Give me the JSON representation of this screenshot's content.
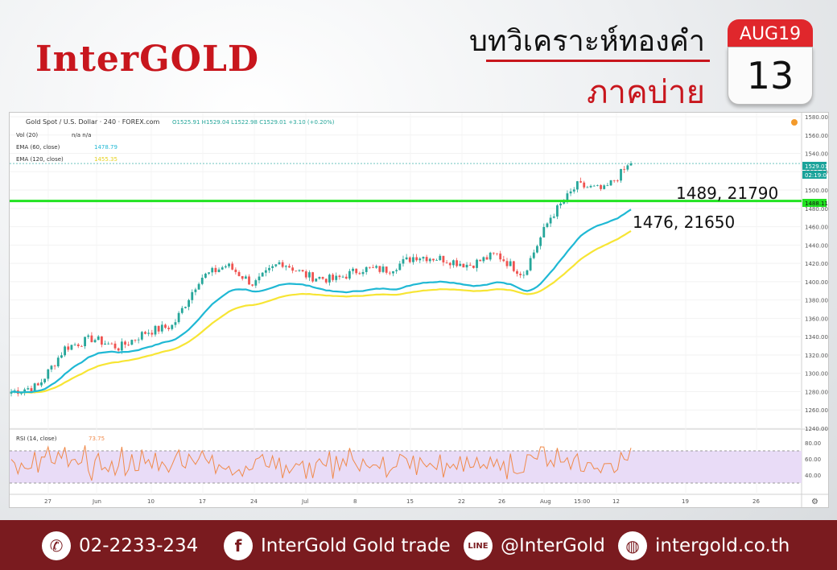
{
  "header": {
    "logo": "InterGOLD",
    "title_top": "บทวิเคราะห์ทองคำ",
    "title_bottom": "ภาคบ่าย",
    "calendar": {
      "month": "AUG19",
      "day": "13"
    }
  },
  "legend": {
    "symbol": "Gold Spot / U.S. Dollar · 240 · FOREX.com",
    "ohlc": "O1525.91  H1529.04  L1522.98  C1529.01  +3.10 (+0.20%)",
    "vol": "Vol (20)",
    "vol_value": "n/a  n/a",
    "ema60": "EMA (60, close)",
    "ema60_value": "1478.79",
    "ema120": "EMA (120, close)",
    "ema120_value": "1455.35",
    "rsi": "RSI (14, close)",
    "rsi_value": "73.75"
  },
  "price_badges": {
    "last": "1529.01",
    "timer": "02:19:03",
    "support": "1488.11"
  },
  "annotations": {
    "resistance": "1489, 21790",
    "ema_level": "1476, 21650"
  },
  "colors": {
    "up_candle": "#26a69a",
    "down_candle": "#ef5350",
    "ema60": "#1fb8d4",
    "ema120": "#f7e534",
    "support_line": "#22e322",
    "rsi_line": "#f08a4b",
    "rsi_band": "#e9dcf7",
    "brand_red": "#c8161d",
    "footer_bg": "#7a1b1f"
  },
  "chart_data": {
    "type": "candlestick",
    "instrument": "Gold Spot / U.S. Dollar",
    "timeframe": "240",
    "ylim": [
      1240,
      1580
    ],
    "y_ticks": [
      1580,
      1560,
      1540,
      1520,
      1500,
      1480,
      1460,
      1440,
      1420,
      1400,
      1380,
      1360,
      1340,
      1320,
      1300,
      1280,
      1260,
      1240
    ],
    "x_ticks": [
      "27",
      "Jun",
      "10",
      "17",
      "24",
      "Jul",
      "8",
      "15",
      "22",
      "26",
      "Aug",
      "15:00",
      "12",
      "19",
      "26"
    ],
    "price_path": [
      {
        "t": "27",
        "close": 1280
      },
      {
        "t": "Jun",
        "close": 1286
      },
      {
        "t": "Jun",
        "close": 1328
      },
      {
        "t": "10",
        "close": 1338
      },
      {
        "t": "10",
        "close": 1328
      },
      {
        "t": "17",
        "close": 1345
      },
      {
        "t": "17",
        "close": 1352
      },
      {
        "t": "24",
        "close": 1404
      },
      {
        "t": "24",
        "close": 1418
      },
      {
        "t": "Jul",
        "close": 1397
      },
      {
        "t": "Jul",
        "close": 1422
      },
      {
        "t": "8",
        "close": 1406
      },
      {
        "t": "8",
        "close": 1402
      },
      {
        "t": "15",
        "close": 1414
      },
      {
        "t": "15",
        "close": 1413
      },
      {
        "t": "22",
        "close": 1428
      },
      {
        "t": "22",
        "close": 1425
      },
      {
        "t": "26",
        "close": 1418
      },
      {
        "t": "Aug",
        "close": 1430
      },
      {
        "t": "Aug",
        "close": 1408
      },
      {
        "t": "15:00",
        "close": 1470
      },
      {
        "t": "15:00",
        "close": 1505
      },
      {
        "t": "12",
        "close": 1500
      },
      {
        "t": "12",
        "close": 1529
      }
    ],
    "series": [
      {
        "name": "EMA (60, close)",
        "last": 1478.79
      },
      {
        "name": "EMA (120, close)",
        "last": 1455.35
      }
    ],
    "horizontal_line": 1488.11,
    "rsi": {
      "name": "RSI (14, close)",
      "last": 73.75,
      "ylim": [
        20,
        85
      ],
      "band": [
        30,
        70
      ],
      "y_ticks": [
        80,
        60,
        40
      ]
    }
  },
  "footer": {
    "phone": "02-2233-234",
    "facebook": "InterGold Gold trade",
    "line": "@InterGold",
    "web": "intergold.co.th",
    "phone_icon": "phone-icon",
    "facebook_icon": "f",
    "line_icon": "LINE",
    "web_icon": "globe-icon"
  }
}
